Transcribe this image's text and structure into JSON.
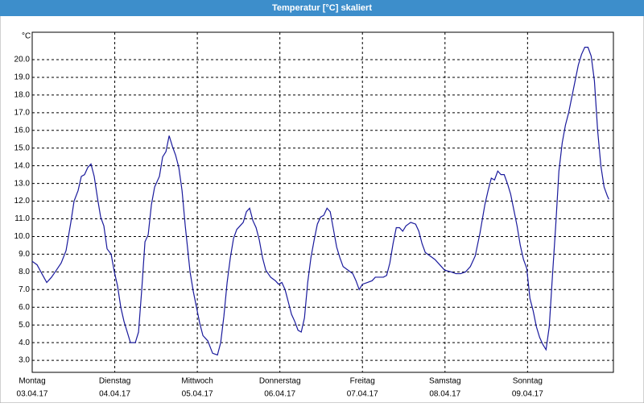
{
  "chart_data": {
    "type": "line",
    "title": "Temperatur [°C] skaliert",
    "ylabel": "°C",
    "color": "#1a1a9c",
    "grid": true,
    "x": [
      0,
      0.059,
      0.117,
      0.176,
      0.234,
      0.293,
      0.351,
      0.41,
      0.468,
      0.507,
      0.556,
      0.595,
      0.634,
      0.673,
      0.712,
      0.751,
      0.79,
      0.829,
      0.868,
      0.907,
      0.956,
      0.995,
      1.034,
      1.073,
      1.112,
      1.151,
      1.19,
      1.249,
      1.288,
      1.327,
      1.366,
      1.405,
      1.444,
      1.483,
      1.541,
      1.58,
      1.62,
      1.659,
      1.698,
      1.737,
      1.776,
      1.815,
      1.854,
      1.912,
      1.951,
      1.99,
      2.029,
      2.068,
      2.127,
      2.185,
      2.244,
      2.283,
      2.322,
      2.361,
      2.4,
      2.439,
      2.478,
      2.517,
      2.556,
      2.595,
      2.634,
      2.673,
      2.712,
      2.751,
      2.79,
      2.829,
      2.888,
      2.946,
      2.985,
      3.024,
      3.063,
      3.102,
      3.141,
      3.18,
      3.22,
      3.259,
      3.298,
      3.337,
      3.376,
      3.415,
      3.454,
      3.493,
      3.532,
      3.571,
      3.61,
      3.649,
      3.688,
      3.727,
      3.766,
      3.824,
      3.883,
      3.922,
      3.961,
      4.0,
      4.059,
      4.117,
      4.156,
      4.195,
      4.254,
      4.293,
      4.332,
      4.371,
      4.41,
      4.449,
      4.488,
      4.527,
      4.585,
      4.644,
      4.683,
      4.722,
      4.761,
      4.82,
      4.878,
      4.937,
      4.995,
      5.073,
      5.132,
      5.19,
      5.249,
      5.307,
      5.366,
      5.424,
      5.483,
      5.522,
      5.561,
      5.6,
      5.639,
      5.678,
      5.717,
      5.756,
      5.795,
      5.834,
      5.873,
      5.912,
      5.951,
      5.99,
      6.029,
      6.068,
      6.107,
      6.146,
      6.185,
      6.224,
      6.263,
      6.302,
      6.341,
      6.38,
      6.42,
      6.459,
      6.498,
      6.537,
      6.576,
      6.615,
      6.654,
      6.693,
      6.732,
      6.771,
      6.81,
      6.849,
      6.888,
      6.927,
      6.966,
      6.985
    ],
    "values": [
      8.6,
      8.4,
      7.9,
      7.4,
      7.7,
      8.1,
      8.5,
      9.2,
      10.8,
      12.0,
      12.6,
      13.4,
      13.5,
      13.9,
      14.1,
      13.4,
      12.2,
      11.1,
      10.6,
      9.3,
      9.0,
      8.0,
      7.2,
      6.0,
      5.2,
      4.6,
      4.0,
      4.0,
      4.6,
      7.0,
      9.7,
      10.1,
      11.8,
      12.8,
      13.4,
      14.5,
      14.8,
      15.7,
      15.1,
      14.6,
      13.9,
      12.6,
      10.6,
      8.0,
      6.9,
      6.0,
      5.1,
      4.4,
      4.1,
      3.4,
      3.3,
      4.0,
      5.5,
      7.4,
      8.8,
      9.9,
      10.4,
      10.6,
      10.8,
      11.4,
      11.6,
      10.9,
      10.5,
      9.8,
      8.8,
      8.1,
      7.7,
      7.5,
      7.3,
      7.4,
      7.0,
      6.3,
      5.6,
      5.2,
      4.7,
      4.6,
      5.4,
      7.4,
      8.8,
      9.8,
      10.7,
      11.1,
      11.2,
      11.6,
      11.4,
      10.4,
      9.4,
      8.8,
      8.3,
      8.1,
      7.9,
      7.5,
      7.0,
      7.3,
      7.4,
      7.5,
      7.7,
      7.7,
      7.7,
      7.8,
      8.5,
      9.6,
      10.5,
      10.5,
      10.3,
      10.6,
      10.8,
      10.7,
      10.3,
      9.6,
      9.1,
      8.9,
      8.7,
      8.4,
      8.1,
      8.0,
      7.9,
      7.9,
      8.0,
      8.3,
      8.9,
      10.2,
      11.8,
      12.6,
      13.3,
      13.2,
      13.7,
      13.5,
      13.5,
      13.0,
      12.4,
      11.5,
      10.6,
      9.5,
      8.7,
      8.2,
      6.5,
      5.8,
      4.9,
      4.3,
      3.9,
      3.6,
      4.9,
      7.8,
      10.6,
      13.7,
      15.3,
      16.3,
      17.0,
      17.9,
      18.8,
      19.7,
      20.3,
      20.7,
      20.7,
      20.2,
      18.8,
      16.0,
      14.0,
      12.8,
      12.3,
      12.1
    ],
    "xlim": [
      0,
      7.04
    ],
    "xticks": [
      {
        "value": 0,
        "label": "Montag"
      },
      {
        "value": 1,
        "label": "Dienstag"
      },
      {
        "value": 2,
        "label": "Mittwoch"
      },
      {
        "value": 3,
        "label": "Donnerstag"
      },
      {
        "value": 4,
        "label": "Freitag"
      },
      {
        "value": 5,
        "label": "Samstag"
      },
      {
        "value": 6,
        "label": "Sonntag"
      }
    ],
    "xtick_dates": [
      "03.04.17",
      "04.04.17",
      "05.04.17",
      "06.04.17",
      "07.04.17",
      "08.04.17",
      "09.04.17"
    ],
    "ylim": [
      2.32,
      21.55
    ],
    "yticks": [
      {
        "value": 3,
        "label": "3.0"
      },
      {
        "value": 4,
        "label": "4.0"
      },
      {
        "value": 5,
        "label": "5.0"
      },
      {
        "value": 6,
        "label": "6.0"
      },
      {
        "value": 7,
        "label": "7.0"
      },
      {
        "value": 8,
        "label": "8.0"
      },
      {
        "value": 9,
        "label": "9.0"
      },
      {
        "value": 10,
        "label": "10.0"
      },
      {
        "value": 11,
        "label": "11.0"
      },
      {
        "value": 12,
        "label": "12.0"
      },
      {
        "value": 13,
        "label": "13.0"
      },
      {
        "value": 14,
        "label": "14.0"
      },
      {
        "value": 15,
        "label": "15.0"
      },
      {
        "value": 16,
        "label": "16.0"
      },
      {
        "value": 17,
        "label": "17.0"
      },
      {
        "value": 18,
        "label": "18.0"
      },
      {
        "value": 19,
        "label": "19.0"
      },
      {
        "value": 20,
        "label": "20.0"
      }
    ]
  }
}
